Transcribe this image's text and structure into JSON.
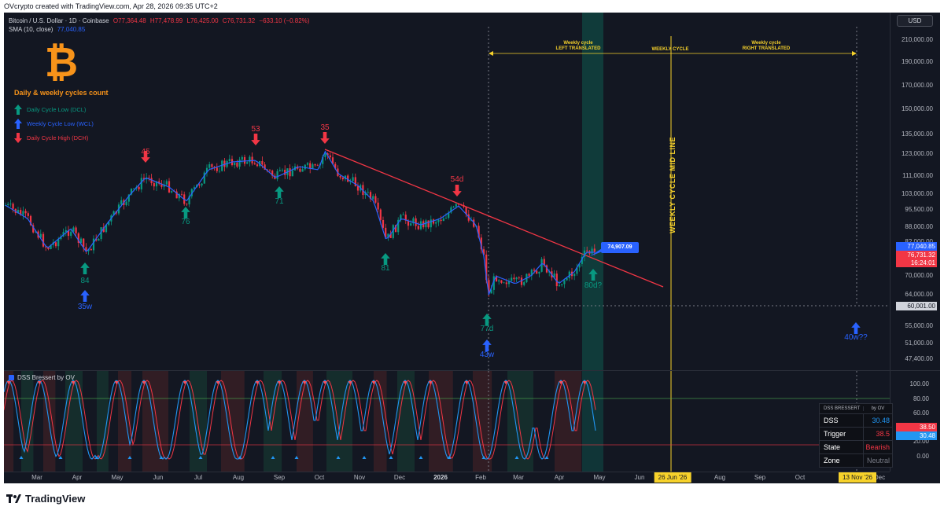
{
  "header": {
    "credit": "OVcrypto created with TradingView.com, Apr 28, 2026 09:35 UTC+2"
  },
  "symbol": {
    "name": "Bitcoin / U.S. Dollar · 1D · Coinbase",
    "open": "O77,364.48",
    "high": "H77,478.99",
    "low": "L76,425.00",
    "close": "C76,731.32",
    "change": "−633.10 (−0.82%)",
    "sma_label": "SMA (10, close)",
    "sma_value": "77,040.85"
  },
  "legend_box": {
    "title": "Daily & weekly cycles count",
    "items": [
      {
        "label": "Daily Cycle Low (DCL)",
        "color": "#089981"
      },
      {
        "label": "Weekly Cycle Low (WCL)",
        "color": "#2962ff"
      },
      {
        "label": "Daily Cycle High (DCH)",
        "color": "#f23645"
      }
    ]
  },
  "markers": {
    "dch": [
      "45",
      "53",
      "35",
      "54d"
    ],
    "dcl": [
      "84",
      "76",
      "71",
      "81",
      "77d",
      "80d?"
    ],
    "wcl": [
      "35w",
      "43w",
      "40w??"
    ]
  },
  "annotations": {
    "weekly_left": [
      "Weekly cycle",
      "LEFT TRANSLATED"
    ],
    "weekly_cycle": "WEEKLY CYCLE",
    "weekly_right": [
      "Weekly cycle",
      "RIGHT TRANSLATED"
    ],
    "midline": "WEEKLY CYCLE MID LINE",
    "callout_price": "74,907.09"
  },
  "price_axis": {
    "currency": "USD",
    "ticks": [
      "210,000.00",
      "190,000.00",
      "170,000.00",
      "150,000.00",
      "135,000.00",
      "123,000.00",
      "111,000.00",
      "103,000.00",
      "95,500.00",
      "88,000.00",
      "82,000.00",
      "70,000.00",
      "64,000.00",
      "55,000.00",
      "51,000.00",
      "47,400.00"
    ],
    "badges": {
      "sma": "77,040.85",
      "last": "76,731.32",
      "countdown": "16:24:01",
      "level": "60,001.00"
    }
  },
  "oscillator": {
    "title": "DSS Bressert by OV",
    "ticks": [
      "100.00",
      "80.00",
      "60.00",
      "40.00",
      "20.00",
      "0.00"
    ],
    "badge_trigger": "38.50",
    "badge_dss": "30.48",
    "table": {
      "header_left": "DSS BRESSERT",
      "header_right": "by OV",
      "rows": [
        {
          "key": "DSS",
          "value": "30.48",
          "color": "#2196f3"
        },
        {
          "key": "Trigger",
          "value": "38.5",
          "color": "#f23645"
        },
        {
          "key": "State",
          "value": "Bearish",
          "color": "#f23645"
        },
        {
          "key": "Zone",
          "value": "Neutral",
          "color": "#787b86"
        }
      ]
    }
  },
  "time_axis": {
    "ticks": [
      "Mar",
      "Apr",
      "May",
      "Jun",
      "Jul",
      "Aug",
      "Sep",
      "Oct",
      "Nov",
      "Dec",
      "2026",
      "Feb",
      "Mar",
      "Apr",
      "May",
      "Jun",
      "Aug",
      "Sep",
      "Oct",
      "Dec"
    ],
    "badges": [
      "26 Jun '26",
      "13 Nov '26"
    ]
  },
  "footer": {
    "brand": "TradingView"
  },
  "colors": {
    "background": "#131722",
    "up": "#089981",
    "down": "#f23645",
    "sma": "#2962ff",
    "trendline": "#f23645",
    "cycle": "#f7d22b",
    "bitcoin": "#f7931a"
  }
}
